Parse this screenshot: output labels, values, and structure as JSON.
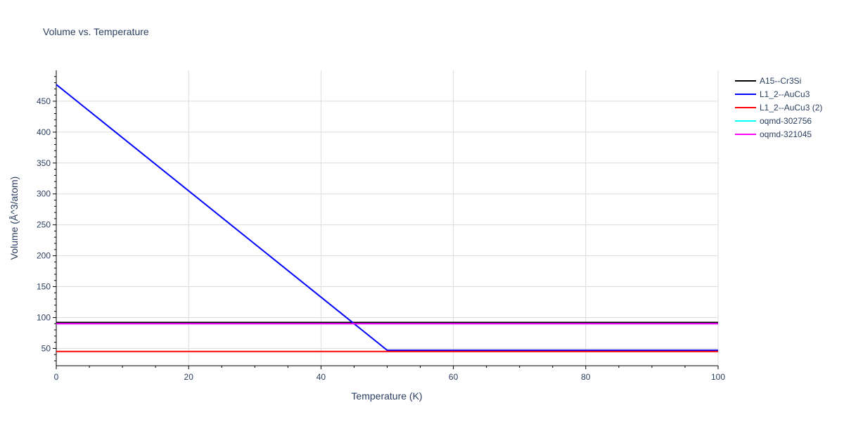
{
  "chart_data": {
    "type": "line",
    "title": "Volume vs. Temperature",
    "xlabel": "Temperature (K)",
    "ylabel": "Volume (Å^3/atom)",
    "xlim": [
      0,
      100
    ],
    "ylim": [
      22,
      500
    ],
    "x_ticks": [
      0,
      20,
      40,
      60,
      80,
      100
    ],
    "y_ticks": [
      50,
      100,
      150,
      200,
      250,
      300,
      350,
      400,
      450
    ],
    "grid": true,
    "legend_position": "top-right",
    "series": [
      {
        "name": "A15--Cr3Si",
        "color": "#000000",
        "x": [
          0,
          100
        ],
        "y": [
          92,
          92
        ]
      },
      {
        "name": "L1_2--AuCu3",
        "color": "#0000ff",
        "x": [
          0,
          50,
          100
        ],
        "y": [
          477,
          47,
          47
        ]
      },
      {
        "name": "L1_2--AuCu3 (2)",
        "color": "#ff0000",
        "x": [
          0,
          100
        ],
        "y": [
          45,
          45
        ]
      },
      {
        "name": "oqmd-302756",
        "color": "#00ffff",
        "x": [
          0,
          100
        ],
        "y": [
          90,
          90
        ]
      },
      {
        "name": "oqmd-321045",
        "color": "#ff00ff",
        "x": [
          0,
          100
        ],
        "y": [
          90,
          90
        ]
      }
    ]
  }
}
